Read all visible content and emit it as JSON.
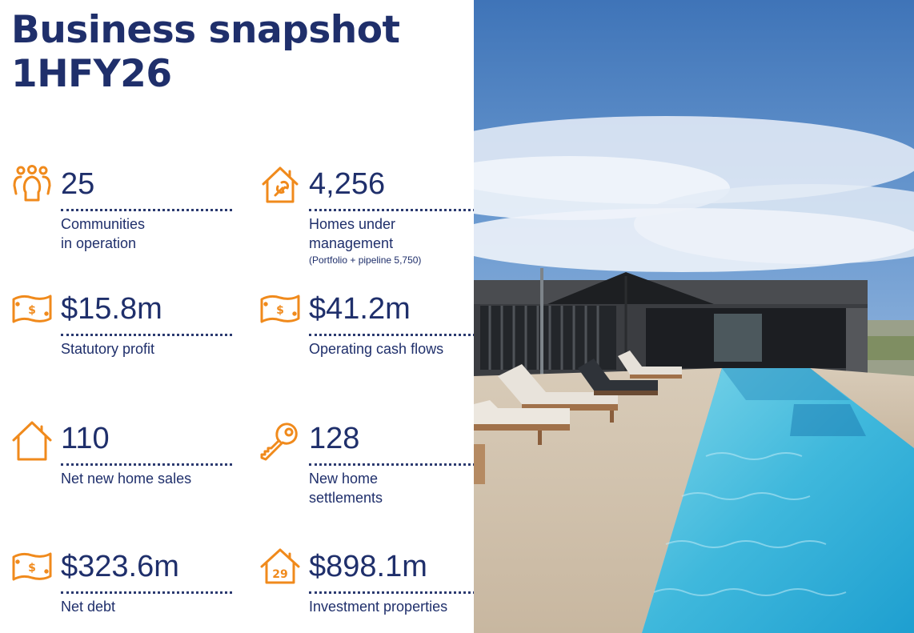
{
  "title": {
    "line1": "Business snapshot",
    "line2": "1HFY26"
  },
  "colors": {
    "navy": "#1f2f6b",
    "orange": "#f08a1c"
  },
  "metrics": [
    {
      "icon": "people-icon",
      "value": "25",
      "label1": "Communities",
      "label2": "in operation",
      "note": ""
    },
    {
      "icon": "house-wrench-icon",
      "value": "4,256",
      "label1": "Homes under",
      "label2": "management",
      "note": "(Portfolio + pipeline 5,750)"
    },
    {
      "icon": "cash-icon",
      "value": "$15.8m",
      "label1": "Statutory profit",
      "label2": "",
      "note": ""
    },
    {
      "icon": "cash-icon",
      "value": "$41.2m",
      "label1": "Operating cash flows",
      "label2": "",
      "note": ""
    },
    {
      "icon": "house-icon",
      "value": "110",
      "label1": "Net new home sales",
      "label2": "",
      "note": ""
    },
    {
      "icon": "key-icon",
      "value": "128",
      "label1": "New home",
      "label2": "settlements",
      "note": ""
    },
    {
      "icon": "cash-icon",
      "value": "$323.6m",
      "label1": "Net debt",
      "label2": "",
      "note": ""
    },
    {
      "icon": "house-29-icon",
      "value": "$898.1m",
      "label1": "Investment properties",
      "label2": "",
      "note": "",
      "icon_text": "29"
    }
  ]
}
